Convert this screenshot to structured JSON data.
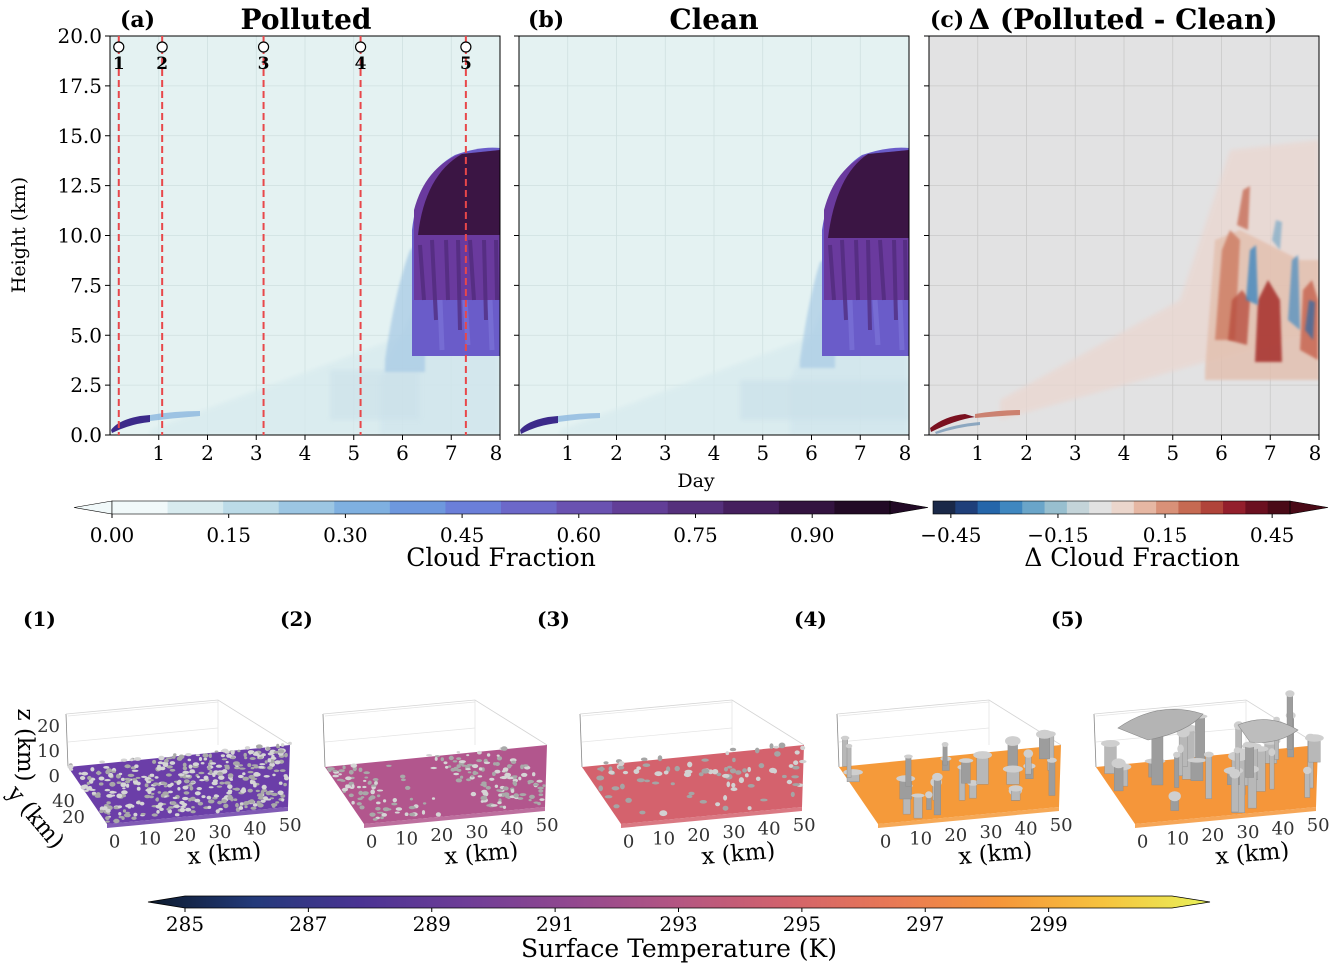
{
  "chart_data": [
    {
      "type": "heatmap",
      "panel_label": "(a)",
      "title": "Polluted",
      "xlabel": "Day",
      "ylabel": "Height (km)",
      "xlim": [
        0,
        8
      ],
      "ylim": [
        0,
        20
      ],
      "x_ticks": [
        "1",
        "2",
        "3",
        "4",
        "5",
        "6",
        "7",
        "8"
      ],
      "y_ticks": [
        "0.0",
        "2.5",
        "5.0",
        "7.5",
        "10.0",
        "12.5",
        "15.0",
        "17.5",
        "20.0"
      ],
      "markers": [
        {
          "label": "1",
          "day": 0.18
        },
        {
          "label": "2",
          "day": 1.07
        },
        {
          "label": "3",
          "day": 3.15
        },
        {
          "label": "4",
          "day": 5.14
        },
        {
          "label": "5",
          "day": 7.3
        }
      ],
      "features": {
        "shallow_cloud": {
          "start_day": 0.0,
          "end_day": 1.8,
          "base_km": 0.3,
          "top_km": 0.9,
          "max_fraction": 0.85
        },
        "deep_cloud": {
          "start_day": 6.3,
          "end_day": 8.0,
          "base_km": 3.8,
          "top_km": 14.3,
          "max_fraction": 0.98
        }
      }
    },
    {
      "type": "heatmap",
      "panel_label": "(b)",
      "title": "Clean",
      "xlabel": "Day",
      "xlim": [
        0,
        8
      ],
      "ylim": [
        0,
        20
      ],
      "x_ticks": [
        "1",
        "2",
        "3",
        "4",
        "5",
        "6",
        "7",
        "8"
      ],
      "features": {
        "shallow_cloud": {
          "start_day": 0.0,
          "end_day": 1.5,
          "base_km": 0.3,
          "top_km": 0.8,
          "max_fraction": 0.8
        },
        "deep_cloud": {
          "start_day": 6.4,
          "end_day": 8.0,
          "base_km": 3.9,
          "top_km": 14.3,
          "max_fraction": 0.98
        }
      }
    },
    {
      "type": "heatmap",
      "panel_label": "(c)",
      "title": "Δ (Polluted - Clean)",
      "xlabel": "Day",
      "xlim": [
        0,
        8
      ],
      "ylim": [
        0,
        20
      ],
      "x_ticks": [
        "1",
        "2",
        "3",
        "4",
        "5",
        "6",
        "7",
        "8"
      ],
      "features": {
        "positive_region": {
          "start_day": 5.8,
          "end_day": 7.6,
          "base_km": 3.5,
          "top_km": 14.0,
          "max_delta": 0.45
        },
        "negative_streaks_days": [
          6.3,
          6.9,
          7.5
        ],
        "early_positive": {
          "start_day": 0.0,
          "end_day": 1.8,
          "max_delta": 0.45
        }
      }
    }
  ],
  "colorbars": {
    "cloud_fraction": {
      "label": "Cloud Fraction",
      "ticks": [
        "0.00",
        "0.15",
        "0.30",
        "0.45",
        "0.60",
        "0.75",
        "0.90"
      ],
      "range": [
        0,
        1
      ],
      "colors": [
        "#f1f9fa",
        "#d8ebef",
        "#bcdbe8",
        "#9cc6e3",
        "#7fb0e0",
        "#6e98de",
        "#6b7fd9",
        "#6c68c9",
        "#6a52b1",
        "#623e97",
        "#55307c",
        "#451f5e",
        "#331340",
        "#220a26"
      ]
    },
    "delta_cloud_fraction": {
      "label": "Δ Cloud Fraction",
      "ticks": [
        "−0.45",
        "−0.15",
        "0.15",
        "0.45"
      ],
      "range": [
        -0.5,
        0.5
      ],
      "colors": [
        "#1a2848",
        "#1f3f7a",
        "#2566aa",
        "#3f87c0",
        "#6aa5c9",
        "#98bfcf",
        "#c4d4d9",
        "#e2e2e2",
        "#ebd6cc",
        "#e6b7a3",
        "#d99178",
        "#c66a52",
        "#b0443a",
        "#931f2c",
        "#6b1020",
        "#4a0a17"
      ]
    },
    "surface_temperature": {
      "label": "Surface Temperature (K)",
      "ticks": [
        "285",
        "287",
        "289",
        "291",
        "293",
        "295",
        "297",
        "299"
      ],
      "range": [
        285,
        301
      ],
      "colors": [
        "#0c1a2c",
        "#233a7a",
        "#4a3393",
        "#6e3d97",
        "#92488f",
        "#b45682",
        "#d2626c",
        "#e87855",
        "#f5953a",
        "#f6c33e",
        "#e8f25a"
      ]
    }
  },
  "snapshots": [
    {
      "label": "(1)",
      "surface_temperature_k": 288.8,
      "cloud_cover": "dense shallow",
      "surface_color": "#6b3ea8"
    },
    {
      "label": "(2)",
      "surface_temperature_k": 291.8,
      "cloud_cover": "banded shallow",
      "surface_color": "#b2568d"
    },
    {
      "label": "(3)",
      "surface_temperature_k": 293.6,
      "cloud_cover": "scattered",
      "surface_color": "#d4626d"
    },
    {
      "label": "(4)",
      "surface_temperature_k": 296.4,
      "cloud_cover": "deepening",
      "surface_color": "#f59a3a"
    },
    {
      "label": "(5)",
      "surface_temperature_k": 296.2,
      "cloud_cover": "deep convection",
      "surface_color": "#f5963a"
    }
  ],
  "snapshot_axes": {
    "x_label": "x (km)",
    "y_label": "y (km)",
    "z_label": "z (km)",
    "x_ticks": [
      "0",
      "10",
      "20",
      "30",
      "40",
      "50"
    ],
    "y_ticks": [
      "20",
      "40"
    ],
    "z_ticks": [
      "0",
      "10",
      "20"
    ]
  }
}
